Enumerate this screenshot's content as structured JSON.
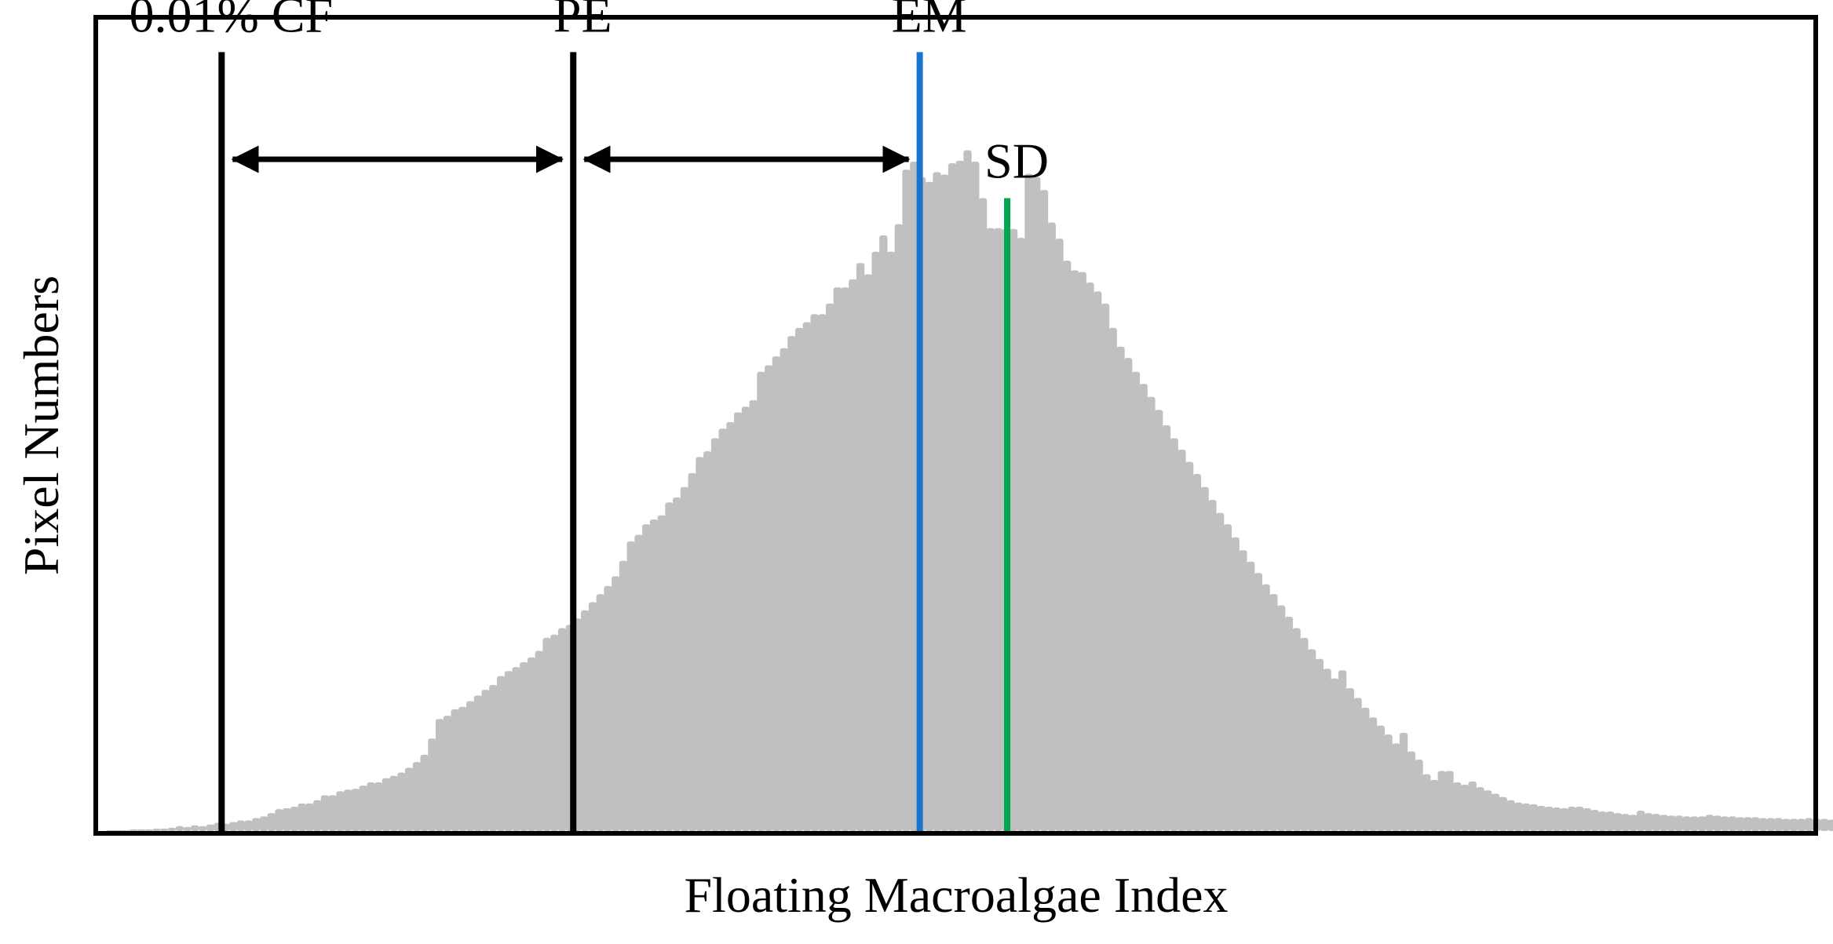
{
  "chart_data": {
    "type": "bar",
    "title": "",
    "xlabel": "Floating Macroalgae Index",
    "ylabel": "Pixel Numbers",
    "grid": false,
    "legend": "none",
    "xlim": [
      0,
      1
    ],
    "ylim": [
      0,
      1
    ],
    "bar_color": "#c0c0c0",
    "histogram": {
      "x_start": 0.005,
      "bin_width": 0.00446,
      "values": [
        0.001,
        0.001,
        0.001,
        0.002,
        0.002,
        0.002,
        0.003,
        0.003,
        0.004,
        0.006,
        0.005,
        0.007,
        0.006,
        0.008,
        0.01,
        0.009,
        0.011,
        0.013,
        0.013,
        0.016,
        0.018,
        0.022,
        0.027,
        0.028,
        0.03,
        0.034,
        0.034,
        0.038,
        0.044,
        0.044,
        0.049,
        0.051,
        0.052,
        0.056,
        0.06,
        0.06,
        0.065,
        0.068,
        0.072,
        0.078,
        0.085,
        0.094,
        0.114,
        0.138,
        0.142,
        0.15,
        0.153,
        0.16,
        0.167,
        0.174,
        0.18,
        0.191,
        0.197,
        0.202,
        0.208,
        0.214,
        0.222,
        0.238,
        0.242,
        0.25,
        0.254,
        0.262,
        0.272,
        0.282,
        0.292,
        0.302,
        0.314,
        0.333,
        0.357,
        0.365,
        0.378,
        0.384,
        0.389,
        0.405,
        0.411,
        0.424,
        0.441,
        0.461,
        0.468,
        0.484,
        0.496,
        0.504,
        0.516,
        0.523,
        0.531,
        0.566,
        0.574,
        0.585,
        0.595,
        0.61,
        0.62,
        0.627,
        0.637,
        0.637,
        0.65,
        0.67,
        0.67,
        0.68,
        0.7,
        0.686,
        0.714,
        0.734,
        0.714,
        0.748,
        0.815,
        0.825,
        0.806,
        0.8,
        0.812,
        0.809,
        0.823,
        0.826,
        0.839,
        0.825,
        0.78,
        0.743,
        0.743,
        0.742,
        0.742,
        0.731,
        0.81,
        0.806,
        0.79,
        0.75,
        0.73,
        0.703,
        0.691,
        0.689,
        0.676,
        0.665,
        0.65,
        0.62,
        0.597,
        0.583,
        0.566,
        0.551,
        0.535,
        0.519,
        0.5,
        0.484,
        0.47,
        0.455,
        0.44,
        0.424,
        0.408,
        0.392,
        0.378,
        0.362,
        0.346,
        0.332,
        0.318,
        0.304,
        0.292,
        0.278,
        0.264,
        0.25,
        0.238,
        0.224,
        0.212,
        0.2,
        0.188,
        0.198,
        0.176,
        0.164,
        0.152,
        0.14,
        0.13,
        0.119,
        0.108,
        0.121,
        0.098,
        0.088,
        0.07,
        0.063,
        0.074,
        0.074,
        0.06,
        0.057,
        0.061,
        0.054,
        0.05,
        0.046,
        0.042,
        0.038,
        0.035,
        0.034,
        0.033,
        0.031,
        0.03,
        0.029,
        0.028,
        0.03,
        0.03,
        0.028,
        0.026,
        0.024,
        0.024,
        0.022,
        0.021,
        0.02,
        0.025,
        0.022,
        0.021,
        0.02,
        0.019,
        0.019,
        0.018,
        0.018,
        0.018,
        0.02,
        0.019,
        0.018,
        0.018,
        0.017,
        0.017,
        0.017,
        0.016,
        0.016,
        0.016,
        0.015,
        0.015,
        0.015,
        0.016,
        0.015,
        0.015,
        0.014,
        0.014,
        0.014,
        0.014,
        0.014,
        0.013,
        0.013,
        0.013,
        0.013,
        0.013,
        0.014,
        0.013,
        0.013,
        0.012,
        0.012,
        0.012,
        0.012,
        0.012,
        0.012,
        0.012,
        0.012,
        0.012,
        0.011,
        0.011,
        0.011,
        0.011,
        0.011,
        0.011,
        0.011,
        0.011,
        0.011,
        0.011,
        0.011,
        0.011,
        0.011,
        0.01,
        0.01,
        0.01,
        0.01,
        0.01,
        0.01,
        0.01,
        0.01,
        0.01,
        0.01,
        0.01,
        0.01,
        0.01,
        0.01,
        0.01,
        0.01,
        0.009,
        0.009,
        0.009,
        0.009,
        0.009,
        0.009,
        0.009,
        0.009,
        0.009,
        0.009,
        0.009,
        0.009,
        0.009,
        0.009,
        0.009,
        0.009,
        0.009,
        0.009,
        0.009,
        0.009,
        0.008,
        0.008,
        0.008,
        0.008,
        0.008,
        0.008,
        0.008,
        0.008,
        0.008,
        0.008,
        0.008,
        0.008,
        0.008,
        0.008,
        0.008,
        0.008,
        0.008,
        0.008,
        0.008,
        0.008
      ]
    },
    "markers": [
      {
        "label": "0.01% CF",
        "x": 0.072,
        "top": 0.96,
        "color": "#000000"
      },
      {
        "label": "PE",
        "x": 0.277,
        "top": 0.96,
        "color": "#000000"
      },
      {
        "label": "EM",
        "x": 0.479,
        "top": 0.96,
        "color": "#1874cd"
      },
      {
        "label": "SD",
        "x": 0.53,
        "top": 0.78,
        "color": "#00a651"
      }
    ],
    "arrows": [
      {
        "from": "0.01% CF",
        "to": "PE"
      },
      {
        "from": "PE",
        "to": "EM"
      }
    ]
  }
}
